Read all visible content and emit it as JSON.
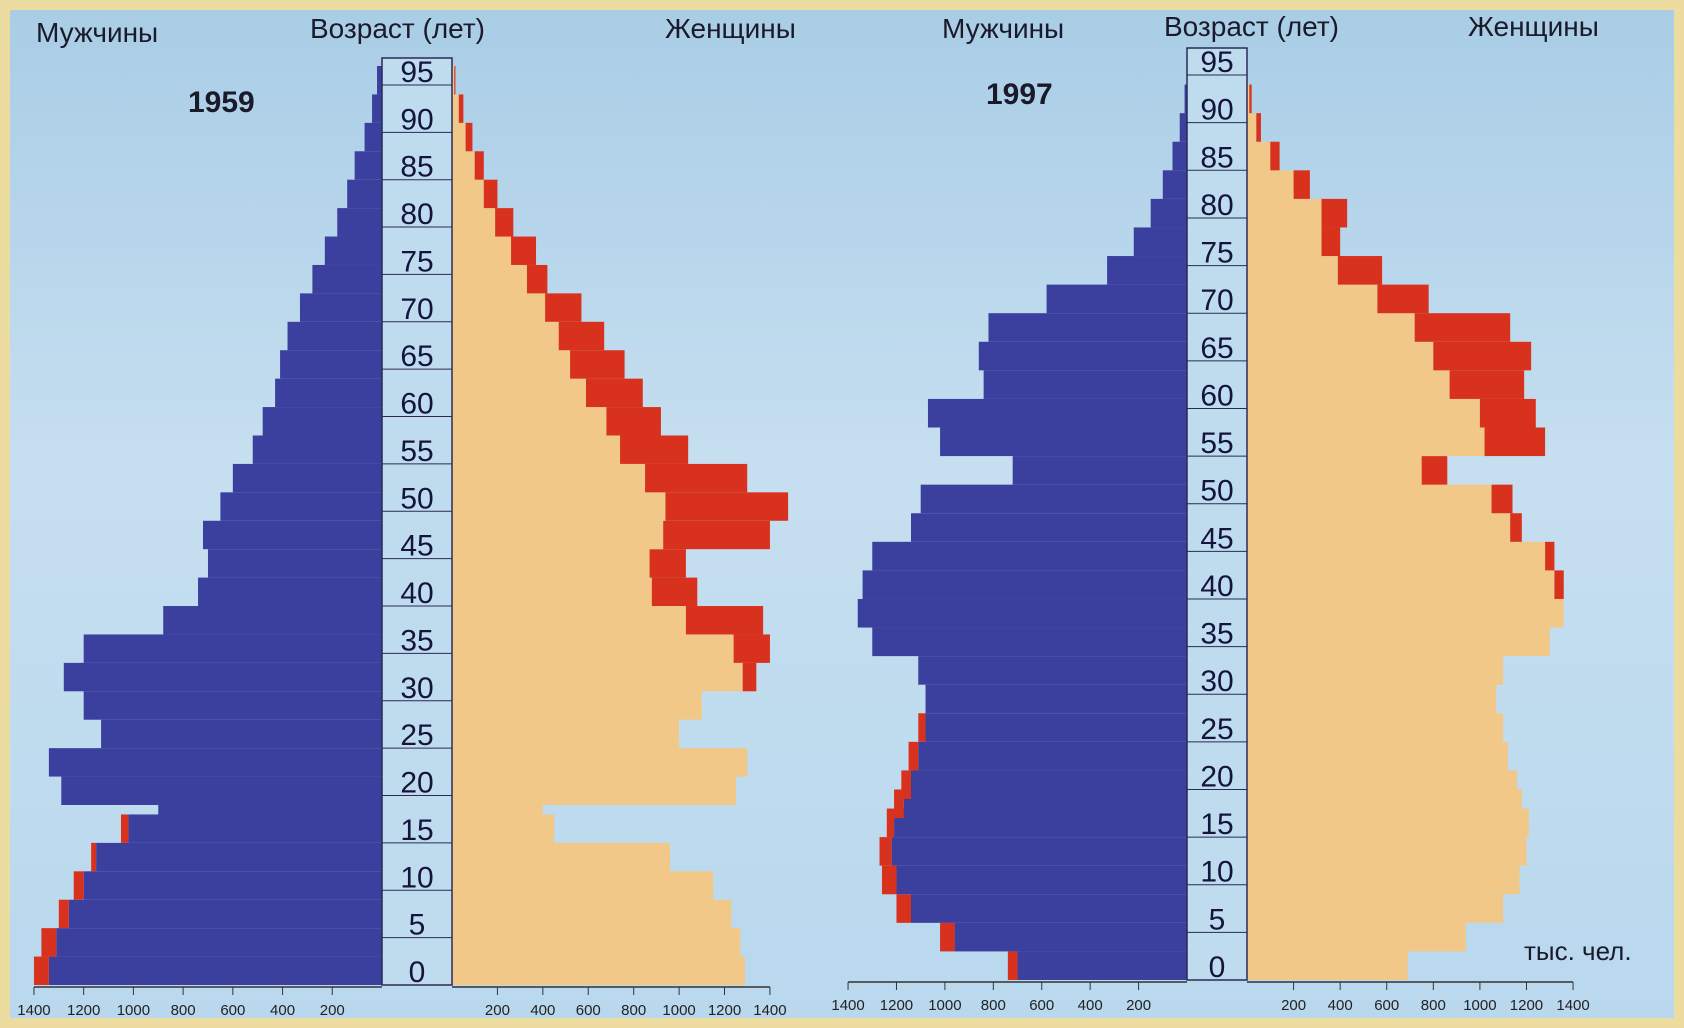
{
  "chart_data": [
    {
      "type": "bar",
      "title": "1959",
      "left_label": "Мужчины",
      "center_label": "Возраст (лет)",
      "right_label": "Женщины",
      "age_ticks": [
        95,
        90,
        85,
        80,
        75,
        70,
        65,
        60,
        55,
        50,
        45,
        40,
        35,
        30,
        25,
        20,
        15,
        10,
        5,
        0
      ],
      "x_ticks_left": [
        "1400",
        "1200",
        "1000",
        "800",
        "600",
        "400",
        "200"
      ],
      "x_ticks_right": [
        "200",
        "400",
        "600",
        "800",
        "1000",
        "1200",
        "1400"
      ],
      "xlim": [
        0,
        1400
      ],
      "colors": {
        "men": "#3b3f9e",
        "women": "#f1c887",
        "deficit": "#d8321e"
      },
      "series": [
        {
          "name": "Мужчины",
          "ages": [
            0,
            3,
            6,
            9,
            12,
            15,
            17,
            19,
            22,
            25,
            28,
            31,
            34,
            37,
            40,
            43,
            46,
            49,
            52,
            55,
            58,
            61,
            64,
            67,
            70,
            73,
            76,
            79,
            82,
            85,
            88,
            91,
            94
          ],
          "values": [
            1340,
            1310,
            1260,
            1200,
            1150,
            1020,
            900,
            1290,
            1340,
            1130,
            1200,
            1280,
            1200,
            880,
            740,
            700,
            720,
            650,
            600,
            520,
            480,
            430,
            410,
            380,
            330,
            280,
            230,
            180,
            140,
            110,
            70,
            40,
            20
          ]
        },
        {
          "name": "Женщины",
          "ages": [
            0,
            3,
            6,
            9,
            12,
            15,
            17,
            19,
            22,
            25,
            28,
            31,
            34,
            37,
            40,
            43,
            46,
            49,
            52,
            55,
            58,
            61,
            64,
            67,
            70,
            73,
            76,
            79,
            82,
            85,
            88,
            91,
            94
          ],
          "values": [
            1290,
            1270,
            1230,
            1150,
            960,
            450,
            400,
            1250,
            1300,
            1000,
            1100,
            1280,
            1240,
            1030,
            880,
            870,
            930,
            940,
            850,
            740,
            680,
            590,
            520,
            470,
            410,
            330,
            260,
            190,
            140,
            100,
            60,
            30,
            10
          ]
        },
        {
          "name": "deficit",
          "ages": [
            0,
            3,
            6,
            9,
            12,
            15,
            17,
            19,
            22,
            25,
            28,
            31,
            34,
            37,
            40,
            43,
            46,
            49,
            52,
            55,
            58,
            61,
            64,
            67,
            70,
            73,
            76,
            79,
            82,
            85,
            88,
            91,
            94
          ],
          "values": [
            60,
            60,
            40,
            40,
            20,
            30,
            0,
            0,
            0,
            0,
            0,
            0,
            0,
            0,
            0,
            0,
            0,
            0,
            0,
            0,
            0,
            0,
            0,
            0,
            0,
            0,
            0,
            0,
            0,
            0,
            0,
            0,
            0
          ],
          "side": "men"
        },
        {
          "name": "excess",
          "ages": [
            0,
            3,
            6,
            9,
            12,
            15,
            17,
            19,
            22,
            25,
            28,
            31,
            34,
            37,
            40,
            43,
            46,
            49,
            52,
            55,
            58,
            61,
            64,
            67,
            70,
            73,
            76,
            79,
            82,
            85,
            88,
            91,
            94
          ],
          "values": [
            0,
            0,
            0,
            0,
            0,
            0,
            0,
            0,
            0,
            0,
            0,
            60,
            160,
            340,
            200,
            160,
            470,
            540,
            450,
            300,
            240,
            250,
            240,
            200,
            160,
            90,
            110,
            80,
            60,
            40,
            30,
            20,
            5
          ],
          "side": "women"
        }
      ]
    },
    {
      "type": "bar",
      "title": "1997",
      "left_label": "Мужчины",
      "center_label": "Возраст (лет)",
      "right_label": "Женщины",
      "unit_label": "тыс. чел.",
      "age_ticks": [
        95,
        90,
        85,
        80,
        75,
        70,
        65,
        60,
        55,
        50,
        45,
        40,
        35,
        30,
        25,
        20,
        15,
        10,
        5,
        0
      ],
      "x_ticks_left": [
        "1400",
        "1200",
        "1000",
        "800",
        "600",
        "400",
        "200"
      ],
      "x_ticks_right": [
        "200",
        "400",
        "600",
        "800",
        "1000",
        "1200",
        "1400"
      ],
      "xlim": [
        0,
        1400
      ],
      "colors": {
        "men": "#3b3f9e",
        "women": "#f1c887",
        "deficit": "#d8321e"
      },
      "series": [
        {
          "name": "Мужчины",
          "ages": [
            0,
            3,
            6,
            9,
            12,
            15,
            17,
            19,
            22,
            25,
            28,
            31,
            34,
            37,
            40,
            43,
            46,
            49,
            52,
            55,
            58,
            61,
            64,
            67,
            70,
            73,
            76,
            79,
            82,
            85,
            88,
            91,
            94
          ],
          "values": [
            700,
            960,
            1140,
            1200,
            1220,
            1210,
            1170,
            1140,
            1110,
            1080,
            1080,
            1110,
            1300,
            1360,
            1340,
            1300,
            1140,
            1100,
            720,
            1020,
            1070,
            840,
            860,
            820,
            580,
            330,
            220,
            150,
            100,
            60,
            30,
            10,
            0
          ]
        },
        {
          "name": "Женщины",
          "ages": [
            0,
            3,
            6,
            9,
            12,
            15,
            17,
            19,
            22,
            25,
            28,
            31,
            34,
            37,
            40,
            43,
            46,
            49,
            52,
            55,
            58,
            61,
            64,
            67,
            70,
            73,
            76,
            79,
            82,
            85,
            88,
            91,
            94
          ],
          "values": [
            690,
            940,
            1100,
            1170,
            1200,
            1210,
            1180,
            1160,
            1120,
            1100,
            1070,
            1100,
            1300,
            1360,
            1320,
            1280,
            1130,
            1050,
            750,
            1020,
            1000,
            870,
            800,
            720,
            560,
            390,
            320,
            320,
            200,
            100,
            40,
            10,
            0
          ]
        },
        {
          "name": "deficit",
          "ages": [
            0,
            3,
            6,
            9,
            12,
            15,
            17,
            19,
            22,
            25,
            28,
            31,
            34,
            37,
            40,
            43,
            46,
            49,
            52,
            55,
            58,
            61,
            64,
            67,
            70,
            73,
            76,
            79,
            82,
            85,
            88,
            91,
            94
          ],
          "values": [
            40,
            60,
            60,
            60,
            50,
            30,
            40,
            40,
            40,
            30,
            0,
            0,
            0,
            0,
            0,
            0,
            0,
            0,
            0,
            0,
            0,
            0,
            0,
            0,
            0,
            0,
            0,
            0,
            0,
            0,
            0,
            0,
            0
          ],
          "side": "men"
        },
        {
          "name": "excess",
          "ages": [
            0,
            3,
            6,
            9,
            12,
            15,
            17,
            19,
            22,
            25,
            28,
            31,
            34,
            37,
            40,
            43,
            46,
            49,
            52,
            55,
            58,
            61,
            64,
            67,
            70,
            73,
            76,
            79,
            82,
            85,
            88,
            91,
            94
          ],
          "values": [
            0,
            0,
            0,
            0,
            0,
            0,
            0,
            0,
            0,
            0,
            0,
            0,
            0,
            0,
            40,
            40,
            50,
            90,
            110,
            260,
            240,
            320,
            420,
            410,
            220,
            190,
            80,
            110,
            70,
            40,
            20,
            10,
            0
          ],
          "side": "women"
        }
      ]
    }
  ]
}
